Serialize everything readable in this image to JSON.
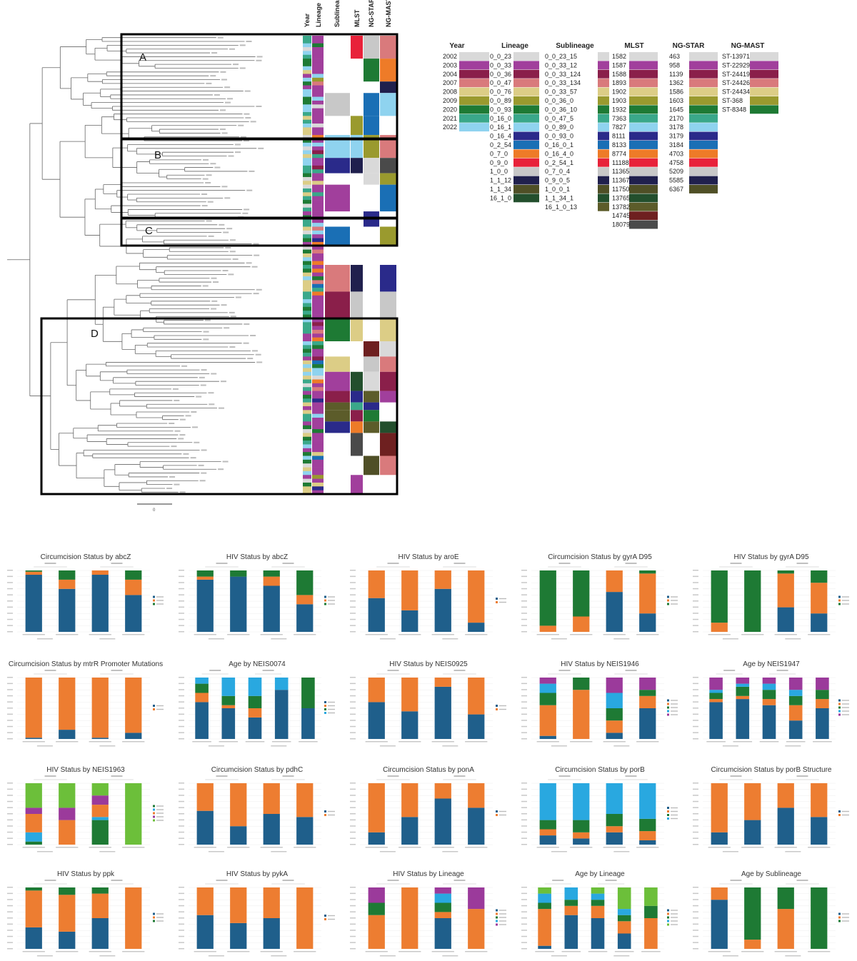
{
  "tree": {
    "column_headers": [
      "Year",
      "Lineage",
      "Sublineage",
      "MLST",
      "NG-STAR",
      "NG-MAST"
    ],
    "box_labels": [
      "A",
      "B",
      "C",
      "D"
    ],
    "scale_label": "0"
  },
  "legend": {
    "headers": [
      "Year",
      "Lineage",
      "Sublineage",
      "MLST",
      "NG-STAR",
      "NG-MAST"
    ],
    "palette": [
      "#d9d9d9",
      "#a13f9c",
      "#8a1f4a",
      "#d97a7c",
      "#dccd86",
      "#9a9a2e",
      "#1e7a34",
      "#3aa88a",
      "#8fd3ef",
      "#2a2a8a",
      "#1a6fb5",
      "#ee7b28",
      "#e8223a",
      "#c8c8c8",
      "#20204d",
      "#4f4f26",
      "#234f2d",
      "#5c5c2a",
      "#6e2020",
      "#4a4a4a"
    ],
    "year": [
      "2002",
      "2003",
      "2004",
      "2007",
      "2008",
      "2009",
      "2020",
      "2021",
      "2022"
    ],
    "lineage": [
      "0_0_23",
      "0_0_33",
      "0_0_36",
      "0_0_47",
      "0_0_76",
      "0_0_89",
      "0_0_93",
      "0_16_0",
      "0_16_1",
      "0_16_4",
      "0_2_54",
      "0_7_0",
      "0_9_0",
      "1_0_0",
      "1_1_12",
      "1_1_34",
      "16_1_0"
    ],
    "sublineage": [
      "0_0_23_15",
      "0_0_33_12",
      "0_0_33_124",
      "0_0_33_134",
      "0_0_33_57",
      "0_0_36_0",
      "0_0_36_10",
      "0_0_47_5",
      "0_0_89_0",
      "0_0_93_0",
      "0_16_0_1",
      "0_16_4_0",
      "0_2_54_1",
      "0_7_0_4",
      "0_9_0_5",
      "1_0_0_1",
      "1_1_34_1",
      "16_1_0_13"
    ],
    "mlst": [
      "1582",
      "1587",
      "1588",
      "1893",
      "1902",
      "1903",
      "1932",
      "7363",
      "7827",
      "8111",
      "8133",
      "8774",
      "11188",
      "11365",
      "11367",
      "11750",
      "13765",
      "13782",
      "14745",
      "18079"
    ],
    "ngstar": [
      "463",
      "958",
      "1139",
      "1362",
      "1586",
      "1603",
      "1645",
      "2170",
      "3178",
      "3179",
      "3184",
      "4703",
      "4758",
      "5209",
      "5585",
      "6367"
    ],
    "ngmast": [
      "ST-13971",
      "ST-22929",
      "ST-24419",
      "ST-24426",
      "ST-24434",
      "ST-368",
      "ST-8348"
    ]
  },
  "colors": {
    "blue": "#1f5f8b",
    "orange": "#ed7d31",
    "green": "#1e7a34",
    "lightblue": "#29a8e0",
    "purple": "#9b3a9b",
    "lime": "#6cbf3a",
    "gold": "#c9a227",
    "red": "#d93a3a"
  },
  "chart_data": [
    {
      "type": "bar",
      "title": "Circumcision Status by abcZ",
      "stacked": true,
      "series": [
        {
          "values": [
            0.93,
            0.7,
            0.93,
            0.6
          ]
        },
        {
          "values": [
            0.05,
            0.15,
            0.07,
            0.25
          ]
        },
        {
          "values": [
            0.02,
            0.15,
            0,
            0.15
          ]
        }
      ],
      "colors": [
        "blue",
        "orange",
        "green"
      ]
    },
    {
      "type": "bar",
      "title": "HIV Status by abcZ",
      "stacked": true,
      "series": [
        {
          "values": [
            0.85,
            0.9,
            0.75,
            0.45
          ]
        },
        {
          "values": [
            0.05,
            0,
            0.15,
            0.15
          ]
        },
        {
          "values": [
            0.1,
            0.1,
            0.1,
            0.4
          ]
        }
      ],
      "colors": [
        "blue",
        "orange",
        "green"
      ]
    },
    {
      "type": "bar",
      "title": "HIV Status by aroE",
      "stacked": true,
      "series": [
        {
          "values": [
            0.55,
            0.35,
            0.7,
            0.15
          ]
        },
        {
          "values": [
            0.45,
            0.65,
            0.3,
            0.85
          ]
        }
      ],
      "colors": [
        "blue",
        "orange"
      ]
    },
    {
      "type": "bar",
      "title": "Circumcision Status by gyrA D95",
      "stacked": true,
      "series": [
        {
          "values": [
            0,
            0,
            0.65,
            0.3
          ]
        },
        {
          "values": [
            0.1,
            0.25,
            0.35,
            0.65
          ]
        },
        {
          "values": [
            0.9,
            0.75,
            0,
            0.05
          ]
        }
      ],
      "colors": [
        "blue",
        "orange",
        "green"
      ]
    },
    {
      "type": "bar",
      "title": "HIV Status by gyrA D95",
      "stacked": true,
      "series": [
        {
          "values": [
            0,
            0,
            0.4,
            0.3
          ]
        },
        {
          "values": [
            0.15,
            0,
            0.55,
            0.5
          ]
        },
        {
          "values": [
            0.85,
            1,
            0.05,
            0.2
          ]
        }
      ],
      "colors": [
        "blue",
        "orange",
        "green"
      ]
    },
    {
      "type": "bar",
      "title": "Circumcision Status by mtrR Promoter Mutations",
      "stacked": true,
      "series": [
        {
          "values": [
            0.02,
            0.15,
            0.02,
            0.1
          ]
        },
        {
          "values": [
            0.98,
            0.85,
            0.98,
            0.9
          ]
        }
      ],
      "colors": [
        "blue",
        "orange"
      ]
    },
    {
      "type": "bar",
      "title": "Age by NEIS0074",
      "stacked": true,
      "series": [
        {
          "values": [
            0.6,
            0.5,
            0.35,
            0.8,
            0.5
          ]
        },
        {
          "values": [
            0.15,
            0.05,
            0.15,
            0,
            0
          ]
        },
        {
          "values": [
            0.15,
            0.15,
            0.2,
            0,
            0.5
          ]
        },
        {
          "values": [
            0.1,
            0.3,
            0.3,
            0.2,
            0
          ]
        }
      ],
      "colors": [
        "blue",
        "orange",
        "green",
        "lightblue"
      ]
    },
    {
      "type": "bar",
      "title": "HIV Status by NEIS0925",
      "stacked": true,
      "series": [
        {
          "values": [
            0.6,
            0.45,
            0.85,
            0.4
          ]
        },
        {
          "values": [
            0.4,
            0.55,
            0.15,
            0.6
          ]
        }
      ],
      "colors": [
        "blue",
        "orange"
      ]
    },
    {
      "type": "bar",
      "title": "HIV Status by NEIS1946",
      "stacked": true,
      "series": [
        {
          "values": [
            0.05,
            0,
            0.1,
            0.5
          ]
        },
        {
          "values": [
            0.5,
            0.8,
            0.2,
            0.2
          ]
        },
        {
          "values": [
            0.2,
            0.2,
            0.2,
            0.1
          ]
        },
        {
          "values": [
            0.15,
            0,
            0.25,
            0
          ]
        },
        {
          "values": [
            0.1,
            0,
            0.25,
            0.2
          ]
        }
      ],
      "colors": [
        "blue",
        "orange",
        "green",
        "lightblue",
        "purple"
      ]
    },
    {
      "type": "bar",
      "title": "Age by NEIS1947",
      "stacked": true,
      "series": [
        {
          "values": [
            0.6,
            0.65,
            0.55,
            0.3,
            0.5
          ]
        },
        {
          "values": [
            0.05,
            0.05,
            0.1,
            0.25,
            0.15
          ]
        },
        {
          "values": [
            0.1,
            0.15,
            0.15,
            0.15,
            0.15
          ]
        },
        {
          "values": [
            0.05,
            0.05,
            0.1,
            0.1,
            0
          ]
        },
        {
          "values": [
            0.2,
            0.1,
            0.1,
            0.2,
            0.2
          ]
        }
      ],
      "colors": [
        "blue",
        "orange",
        "green",
        "lightblue",
        "purple"
      ]
    },
    {
      "type": "bar",
      "title": "HIV Status by NEIS1963",
      "stacked": true,
      "series": [
        {
          "values": [
            0.05,
            0,
            0.4,
            0
          ]
        },
        {
          "values": [
            0.15,
            0,
            0.05,
            0
          ]
        },
        {
          "values": [
            0.3,
            0.4,
            0.2,
            0
          ]
        },
        {
          "values": [
            0.1,
            0.2,
            0.15,
            0
          ]
        },
        {
          "values": [
            0.4,
            0.4,
            0.2,
            1
          ]
        }
      ],
      "colors": [
        "green",
        "lightblue",
        "orange",
        "purple",
        "lime"
      ]
    },
    {
      "type": "bar",
      "title": "Circumcision Status by pdhC",
      "stacked": true,
      "series": [
        {
          "values": [
            0.55,
            0.3,
            0.5,
            0.45
          ]
        },
        {
          "values": [
            0.45,
            0.7,
            0.5,
            0.55
          ]
        }
      ],
      "colors": [
        "blue",
        "orange"
      ]
    },
    {
      "type": "bar",
      "title": "Circumcision Status by ponA",
      "stacked": true,
      "series": [
        {
          "values": [
            0.2,
            0.45,
            0.75,
            0.6
          ]
        },
        {
          "values": [
            0.8,
            0.55,
            0.25,
            0.4
          ]
        }
      ],
      "colors": [
        "blue",
        "orange"
      ]
    },
    {
      "type": "bar",
      "title": "Circumcision Status by porB",
      "stacked": true,
      "series": [
        {
          "values": [
            0.15,
            0.1,
            0.2,
            0.07
          ]
        },
        {
          "values": [
            0.1,
            0.1,
            0.1,
            0.15
          ]
        },
        {
          "values": [
            0.15,
            0.2,
            0.2,
            0.2
          ]
        },
        {
          "values": [
            0.6,
            0.6,
            0.5,
            0.58
          ]
        }
      ],
      "colors": [
        "blue",
        "orange",
        "green",
        "lightblue"
      ]
    },
    {
      "type": "bar",
      "title": "Circumcision Status by porB Structure",
      "stacked": true,
      "series": [
        {
          "values": [
            0.2,
            0.4,
            0.6,
            0.45
          ]
        },
        {
          "values": [
            0.8,
            0.6,
            0.4,
            0.55
          ]
        }
      ],
      "colors": [
        "blue",
        "orange"
      ]
    },
    {
      "type": "bar",
      "title": "HIV Status by ppk",
      "stacked": true,
      "series": [
        {
          "values": [
            0.35,
            0.28,
            0.5,
            0
          ]
        },
        {
          "values": [
            0.6,
            0.6,
            0.4,
            1
          ]
        },
        {
          "values": [
            0.05,
            0.12,
            0.1,
            0
          ]
        }
      ],
      "colors": [
        "blue",
        "orange",
        "green"
      ]
    },
    {
      "type": "bar",
      "title": "HIV Status by pykA",
      "stacked": true,
      "series": [
        {
          "values": [
            0.55,
            0.42,
            0.5,
            0
          ]
        },
        {
          "values": [
            0.45,
            0.58,
            0.5,
            1
          ]
        }
      ],
      "colors": [
        "blue",
        "orange"
      ]
    },
    {
      "type": "bar",
      "title": "HIV Status by Lineage",
      "stacked": true,
      "series": [
        {
          "values": [
            0,
            0,
            0.5,
            0
          ]
        },
        {
          "values": [
            0.55,
            1,
            0.1,
            0.65
          ]
        },
        {
          "values": [
            0.2,
            0,
            0.15,
            0
          ]
        },
        {
          "values": [
            0,
            0,
            0.15,
            0
          ]
        },
        {
          "values": [
            0.25,
            0,
            0.1,
            0.35
          ]
        }
      ],
      "colors": [
        "blue",
        "orange",
        "green",
        "lightblue",
        "purple"
      ]
    },
    {
      "type": "bar",
      "title": "Age by Lineage",
      "stacked": true,
      "series": [
        {
          "values": [
            0.05,
            0.55,
            0.5,
            0.25,
            0
          ]
        },
        {
          "values": [
            0.6,
            0.15,
            0.2,
            0.2,
            0.5
          ]
        },
        {
          "values": [
            0.1,
            0.1,
            0.1,
            0.1,
            0.2
          ]
        },
        {
          "values": [
            0.15,
            0.2,
            0.1,
            0.1,
            0
          ]
        },
        {
          "values": [
            0.1,
            0,
            0.1,
            0.35,
            0.3
          ]
        }
      ],
      "colors": [
        "blue",
        "orange",
        "green",
        "lightblue",
        "lime"
      ]
    },
    {
      "type": "bar",
      "title": "Age by Sublineage",
      "stacked": true,
      "series": [
        {
          "values": [
            0.8,
            0,
            0,
            0
          ]
        },
        {
          "values": [
            0.2,
            0.15,
            0.65,
            0
          ]
        },
        {
          "values": [
            0,
            0.85,
            0.35,
            1
          ]
        }
      ],
      "colors": [
        "blue",
        "orange",
        "green"
      ]
    }
  ]
}
